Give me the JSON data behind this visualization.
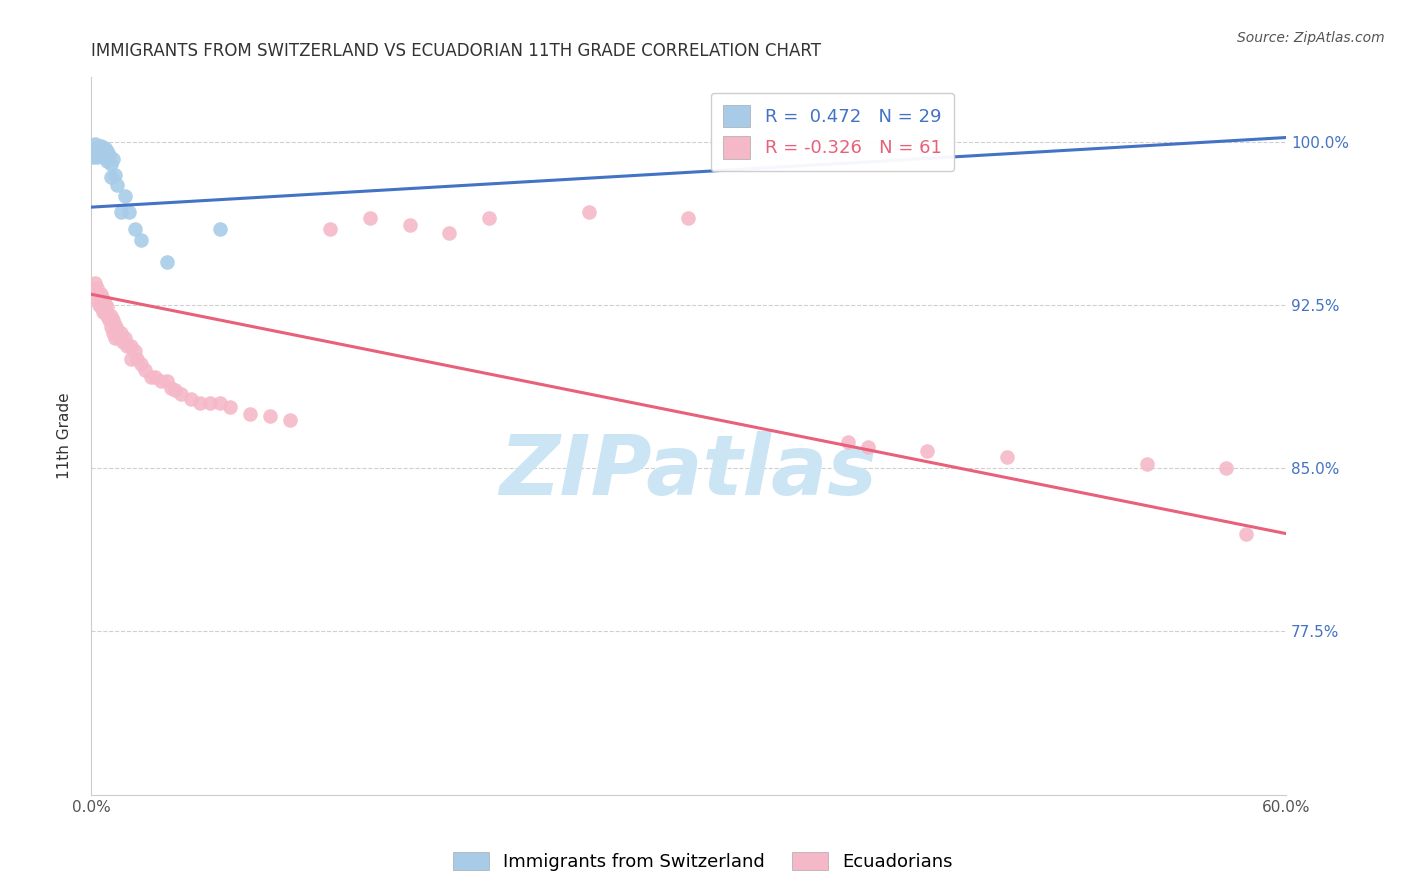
{
  "title": "IMMIGRANTS FROM SWITZERLAND VS ECUADORIAN 11TH GRADE CORRELATION CHART",
  "source": "Source: ZipAtlas.com",
  "ylabel": "11th Grade",
  "xlim": [
    0.0,
    0.6
  ],
  "ylim": [
    0.7,
    1.03
  ],
  "xtick_labels": [
    "0.0%",
    "",
    "",
    "",
    "",
    "",
    "60.0%"
  ],
  "xtick_vals": [
    0.0,
    0.1,
    0.2,
    0.3,
    0.4,
    0.5,
    0.6
  ],
  "ytick_labels": [
    "77.5%",
    "85.0%",
    "92.5%",
    "100.0%"
  ],
  "ytick_vals": [
    0.775,
    0.85,
    0.925,
    1.0
  ],
  "gridline_color": "#d0d0d0",
  "background_color": "#ffffff",
  "blue_color": "#a8cce8",
  "blue_line_color": "#4472C4",
  "pink_color": "#f4b8c8",
  "pink_line_color": "#E8607A",
  "blue_label": "Immigrants from Switzerland",
  "pink_label": "Ecuadorians",
  "blue_R": 0.472,
  "blue_N": 29,
  "pink_R": -0.326,
  "pink_N": 61,
  "title_fontsize": 12,
  "axis_label_fontsize": 11,
  "tick_fontsize": 11,
  "legend_fontsize": 13,
  "source_fontsize": 10,
  "watermark_text": "ZIPatlas",
  "watermark_color": "#cce5f5",
  "watermark_fontsize": 60,
  "blue_line_x0": 0.0,
  "blue_line_y0": 0.97,
  "blue_line_x1": 0.6,
  "blue_line_y1": 1.002,
  "pink_line_x0": 0.0,
  "pink_line_y0": 0.93,
  "pink_line_x1": 0.6,
  "pink_line_y1": 0.82,
  "blue_scatter_x": [
    0.001,
    0.002,
    0.002,
    0.003,
    0.003,
    0.004,
    0.004,
    0.005,
    0.005,
    0.006,
    0.006,
    0.007,
    0.007,
    0.008,
    0.008,
    0.009,
    0.01,
    0.01,
    0.011,
    0.012,
    0.013,
    0.015,
    0.017,
    0.019,
    0.022,
    0.025,
    0.038,
    0.065,
    0.32
  ],
  "blue_scatter_y": [
    0.993,
    0.999,
    0.995,
    0.997,
    0.993,
    0.998,
    0.994,
    0.998,
    0.995,
    0.997,
    0.993,
    0.997,
    0.993,
    0.996,
    0.991,
    0.994,
    0.99,
    0.984,
    0.992,
    0.985,
    0.98,
    0.968,
    0.975,
    0.968,
    0.96,
    0.955,
    0.945,
    0.96,
    0.999
  ],
  "pink_scatter_x": [
    0.002,
    0.003,
    0.003,
    0.004,
    0.004,
    0.005,
    0.005,
    0.006,
    0.006,
    0.007,
    0.007,
    0.008,
    0.008,
    0.009,
    0.01,
    0.01,
    0.011,
    0.011,
    0.012,
    0.012,
    0.013,
    0.014,
    0.015,
    0.016,
    0.017,
    0.018,
    0.02,
    0.02,
    0.022,
    0.023,
    0.025,
    0.027,
    0.03,
    0.032,
    0.035,
    0.038,
    0.04,
    0.042,
    0.045,
    0.05,
    0.055,
    0.06,
    0.065,
    0.07,
    0.08,
    0.09,
    0.1,
    0.12,
    0.14,
    0.16,
    0.18,
    0.2,
    0.25,
    0.3,
    0.38,
    0.39,
    0.42,
    0.46,
    0.53,
    0.57,
    0.58
  ],
  "pink_scatter_y": [
    0.935,
    0.933,
    0.928,
    0.93,
    0.925,
    0.93,
    0.924,
    0.928,
    0.922,
    0.926,
    0.922,
    0.924,
    0.92,
    0.918,
    0.92,
    0.915,
    0.918,
    0.912,
    0.916,
    0.91,
    0.914,
    0.91,
    0.912,
    0.908,
    0.91,
    0.906,
    0.906,
    0.9,
    0.904,
    0.9,
    0.898,
    0.895,
    0.892,
    0.892,
    0.89,
    0.89,
    0.887,
    0.886,
    0.884,
    0.882,
    0.88,
    0.88,
    0.88,
    0.878,
    0.875,
    0.874,
    0.872,
    0.96,
    0.965,
    0.962,
    0.958,
    0.965,
    0.968,
    0.965,
    0.862,
    0.86,
    0.858,
    0.855,
    0.852,
    0.85,
    0.82
  ]
}
